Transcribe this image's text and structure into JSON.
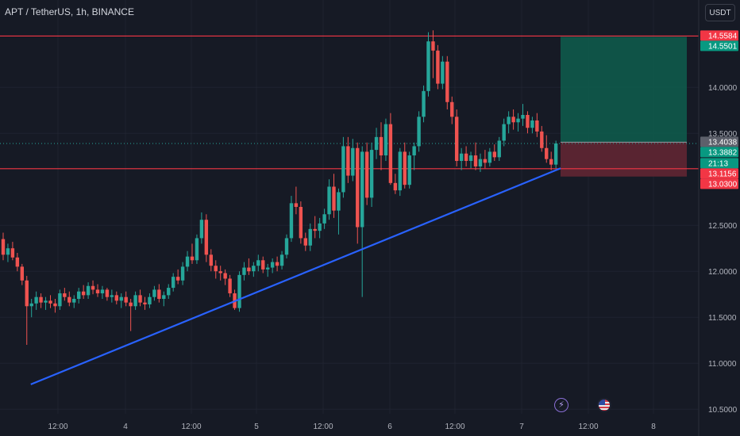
{
  "header": {
    "title": "APT / TetherUS, 1h, BINANCE",
    "currency_button": "USDT"
  },
  "colors": {
    "background": "#161a25",
    "up": "#26a69a",
    "down": "#ef5350",
    "trendline": "#2962ff",
    "level_line": "#f23645",
    "profit_zone": "#0e5a4b",
    "loss_zone": "#5d2531",
    "axis_text": "#b2b5be"
  },
  "chart_data": {
    "type": "candlestick",
    "y_ticks": [
      "14.0000",
      "13.5000",
      "12.5000",
      "12.0000",
      "11.5000",
      "11.0000",
      "10.5000"
    ],
    "x_ticks": [
      "12:00",
      "4",
      "12:00",
      "5",
      "12:00",
      "6",
      "12:00",
      "7",
      "12:00",
      "8"
    ],
    "ylim": [
      10.45,
      14.95
    ],
    "horizontal_levels": [
      14.5584,
      13.1156
    ],
    "price_labels": [
      {
        "text": "14.5584",
        "value": 14.5584,
        "color": "#f23645"
      },
      {
        "text": "14.5501",
        "value": 14.5501,
        "color": "#089981"
      },
      {
        "text": "13.4038",
        "value": 13.4038,
        "color": "#5d606b"
      },
      {
        "text": "13.3882",
        "value": 13.3882,
        "color": "#089981"
      },
      {
        "text": "21:13",
        "value": 13.3882,
        "color": "#089981",
        "countdown": true
      },
      {
        "text": "13.1156",
        "value": 13.1156,
        "color": "#f23645"
      },
      {
        "text": "13.0300",
        "value": 13.03,
        "color": "#f23645"
      }
    ],
    "position": {
      "entry": 13.4038,
      "target": 14.5501,
      "stop": 13.03
    },
    "trendline": [
      {
        "candle": 5,
        "price": 10.77
      },
      {
        "candle": 118,
        "price": 13.12
      }
    ],
    "candles": [
      [
        12.35,
        12.42,
        12.12,
        12.18
      ],
      [
        12.18,
        12.3,
        12.1,
        12.25
      ],
      [
        12.25,
        12.32,
        12.12,
        12.15
      ],
      [
        12.15,
        12.2,
        12.0,
        12.05
      ],
      [
        12.05,
        12.08,
        11.85,
        11.9
      ],
      [
        11.9,
        11.95,
        11.2,
        11.62
      ],
      [
        11.62,
        11.7,
        11.5,
        11.65
      ],
      [
        11.65,
        11.78,
        11.58,
        11.72
      ],
      [
        11.72,
        11.76,
        11.6,
        11.66
      ],
      [
        11.66,
        11.72,
        11.58,
        11.68
      ],
      [
        11.68,
        11.74,
        11.6,
        11.65
      ],
      [
        11.65,
        11.7,
        11.55,
        11.62
      ],
      [
        11.62,
        11.8,
        11.58,
        11.76
      ],
      [
        11.76,
        11.82,
        11.68,
        11.72
      ],
      [
        11.72,
        11.78,
        11.62,
        11.66
      ],
      [
        11.66,
        11.74,
        11.6,
        11.7
      ],
      [
        11.7,
        11.82,
        11.65,
        11.78
      ],
      [
        11.78,
        11.85,
        11.7,
        11.74
      ],
      [
        11.74,
        11.88,
        11.7,
        11.84
      ],
      [
        11.84,
        11.9,
        11.75,
        11.8
      ],
      [
        11.8,
        11.86,
        11.72,
        11.76
      ],
      [
        11.76,
        11.84,
        11.7,
        11.8
      ],
      [
        11.8,
        11.82,
        11.68,
        11.72
      ],
      [
        11.72,
        11.8,
        11.66,
        11.74
      ],
      [
        11.74,
        11.78,
        11.64,
        11.68
      ],
      [
        11.68,
        11.76,
        11.6,
        11.72
      ],
      [
        11.72,
        11.78,
        11.62,
        11.66
      ],
      [
        11.66,
        11.7,
        11.35,
        11.62
      ],
      [
        11.62,
        11.78,
        11.58,
        11.74
      ],
      [
        11.74,
        11.8,
        11.62,
        11.66
      ],
      [
        11.66,
        11.72,
        11.58,
        11.64
      ],
      [
        11.64,
        11.76,
        11.6,
        11.72
      ],
      [
        11.72,
        11.84,
        11.68,
        11.8
      ],
      [
        11.8,
        11.86,
        11.66,
        11.7
      ],
      [
        11.7,
        11.78,
        11.62,
        11.74
      ],
      [
        11.74,
        11.86,
        11.7,
        11.82
      ],
      [
        11.82,
        11.98,
        11.78,
        11.94
      ],
      [
        11.94,
        12.02,
        11.86,
        11.9
      ],
      [
        11.9,
        12.1,
        11.85,
        12.05
      ],
      [
        12.05,
        12.22,
        12.0,
        12.16
      ],
      [
        12.16,
        12.3,
        12.08,
        12.12
      ],
      [
        12.12,
        12.4,
        12.08,
        12.36
      ],
      [
        12.36,
        12.64,
        12.3,
        12.56
      ],
      [
        12.56,
        12.62,
        12.1,
        12.18
      ],
      [
        12.18,
        12.24,
        12.0,
        12.06
      ],
      [
        12.06,
        12.12,
        11.92,
        12.0
      ],
      [
        12.0,
        12.06,
        11.9,
        11.98
      ],
      [
        11.98,
        12.02,
        11.85,
        11.92
      ],
      [
        11.92,
        11.96,
        11.72,
        11.76
      ],
      [
        11.76,
        11.8,
        11.58,
        11.6
      ],
      [
        11.6,
        12.0,
        11.56,
        11.96
      ],
      [
        11.96,
        12.1,
        11.9,
        12.04
      ],
      [
        12.04,
        12.14,
        11.96,
        12.0
      ],
      [
        12.0,
        12.1,
        11.94,
        12.06
      ],
      [
        12.06,
        12.18,
        12.0,
        12.12
      ],
      [
        12.12,
        12.16,
        11.98,
        12.02
      ],
      [
        12.02,
        12.08,
        11.94,
        12.04
      ],
      [
        12.04,
        12.14,
        11.98,
        12.1
      ],
      [
        12.1,
        12.16,
        12.0,
        12.06
      ],
      [
        12.06,
        12.22,
        12.02,
        12.18
      ],
      [
        12.18,
        12.4,
        12.14,
        12.36
      ],
      [
        12.36,
        12.82,
        12.32,
        12.74
      ],
      [
        12.74,
        12.92,
        12.62,
        12.7
      ],
      [
        12.7,
        12.76,
        12.3,
        12.36
      ],
      [
        12.36,
        12.42,
        12.22,
        12.28
      ],
      [
        12.28,
        12.52,
        12.22,
        12.46
      ],
      [
        12.46,
        12.6,
        12.36,
        12.44
      ],
      [
        12.44,
        12.58,
        12.36,
        12.52
      ],
      [
        12.52,
        12.68,
        12.46,
        12.62
      ],
      [
        12.62,
        13.0,
        12.56,
        12.92
      ],
      [
        12.92,
        13.06,
        12.58,
        12.66
      ],
      [
        12.66,
        12.9,
        12.4,
        12.86
      ],
      [
        12.86,
        13.46,
        12.8,
        13.36
      ],
      [
        13.36,
        13.46,
        12.96,
        13.04
      ],
      [
        13.04,
        13.44,
        12.98,
        13.34
      ],
      [
        13.34,
        13.4,
        12.3,
        12.48
      ],
      [
        12.48,
        13.36,
        11.72,
        13.3
      ],
      [
        13.3,
        13.4,
        12.72,
        12.8
      ],
      [
        12.8,
        13.4,
        12.7,
        13.32
      ],
      [
        13.32,
        13.56,
        13.22,
        13.46
      ],
      [
        13.46,
        13.62,
        13.1,
        13.26
      ],
      [
        13.26,
        13.66,
        13.2,
        13.6
      ],
      [
        13.6,
        13.72,
        12.94,
        12.96
      ],
      [
        12.96,
        13.06,
        12.84,
        12.88
      ],
      [
        12.88,
        13.34,
        12.82,
        13.3
      ],
      [
        13.3,
        13.4,
        12.9,
        12.94
      ],
      [
        12.94,
        13.3,
        12.9,
        13.26
      ],
      [
        13.26,
        13.4,
        13.1,
        13.36
      ],
      [
        13.36,
        13.74,
        13.3,
        13.68
      ],
      [
        13.68,
        14.02,
        13.62,
        13.96
      ],
      [
        13.96,
        14.6,
        13.9,
        14.5
      ],
      [
        14.5,
        14.62,
        14.1,
        14.4
      ],
      [
        14.4,
        14.46,
        13.98,
        14.04
      ],
      [
        14.04,
        14.34,
        13.98,
        14.28
      ],
      [
        14.28,
        14.34,
        13.76,
        13.84
      ],
      [
        13.84,
        13.9,
        13.6,
        13.68
      ],
      [
        13.68,
        13.76,
        13.14,
        13.2
      ],
      [
        13.2,
        13.34,
        13.1,
        13.28
      ],
      [
        13.28,
        13.36,
        13.14,
        13.2
      ],
      [
        13.2,
        13.3,
        13.12,
        13.26
      ],
      [
        13.26,
        13.4,
        13.1,
        13.14
      ],
      [
        13.14,
        13.28,
        13.08,
        13.22
      ],
      [
        13.22,
        13.32,
        13.12,
        13.18
      ],
      [
        13.18,
        13.34,
        13.14,
        13.3
      ],
      [
        13.3,
        13.38,
        13.2,
        13.24
      ],
      [
        13.24,
        13.46,
        13.2,
        13.42
      ],
      [
        13.42,
        13.66,
        13.36,
        13.6
      ],
      [
        13.6,
        13.74,
        13.5,
        13.68
      ],
      [
        13.68,
        13.76,
        13.54,
        13.62
      ],
      [
        13.62,
        13.72,
        13.52,
        13.66
      ],
      [
        13.66,
        13.82,
        13.58,
        13.7
      ],
      [
        13.7,
        13.74,
        13.5,
        13.56
      ],
      [
        13.56,
        13.68,
        13.5,
        13.64
      ],
      [
        13.64,
        13.72,
        13.46,
        13.52
      ],
      [
        13.52,
        13.58,
        13.3,
        13.34
      ],
      [
        13.34,
        13.48,
        13.18,
        13.22
      ],
      [
        13.22,
        13.3,
        13.1,
        13.16
      ],
      [
        13.16,
        13.42,
        13.12,
        13.39
      ]
    ]
  }
}
